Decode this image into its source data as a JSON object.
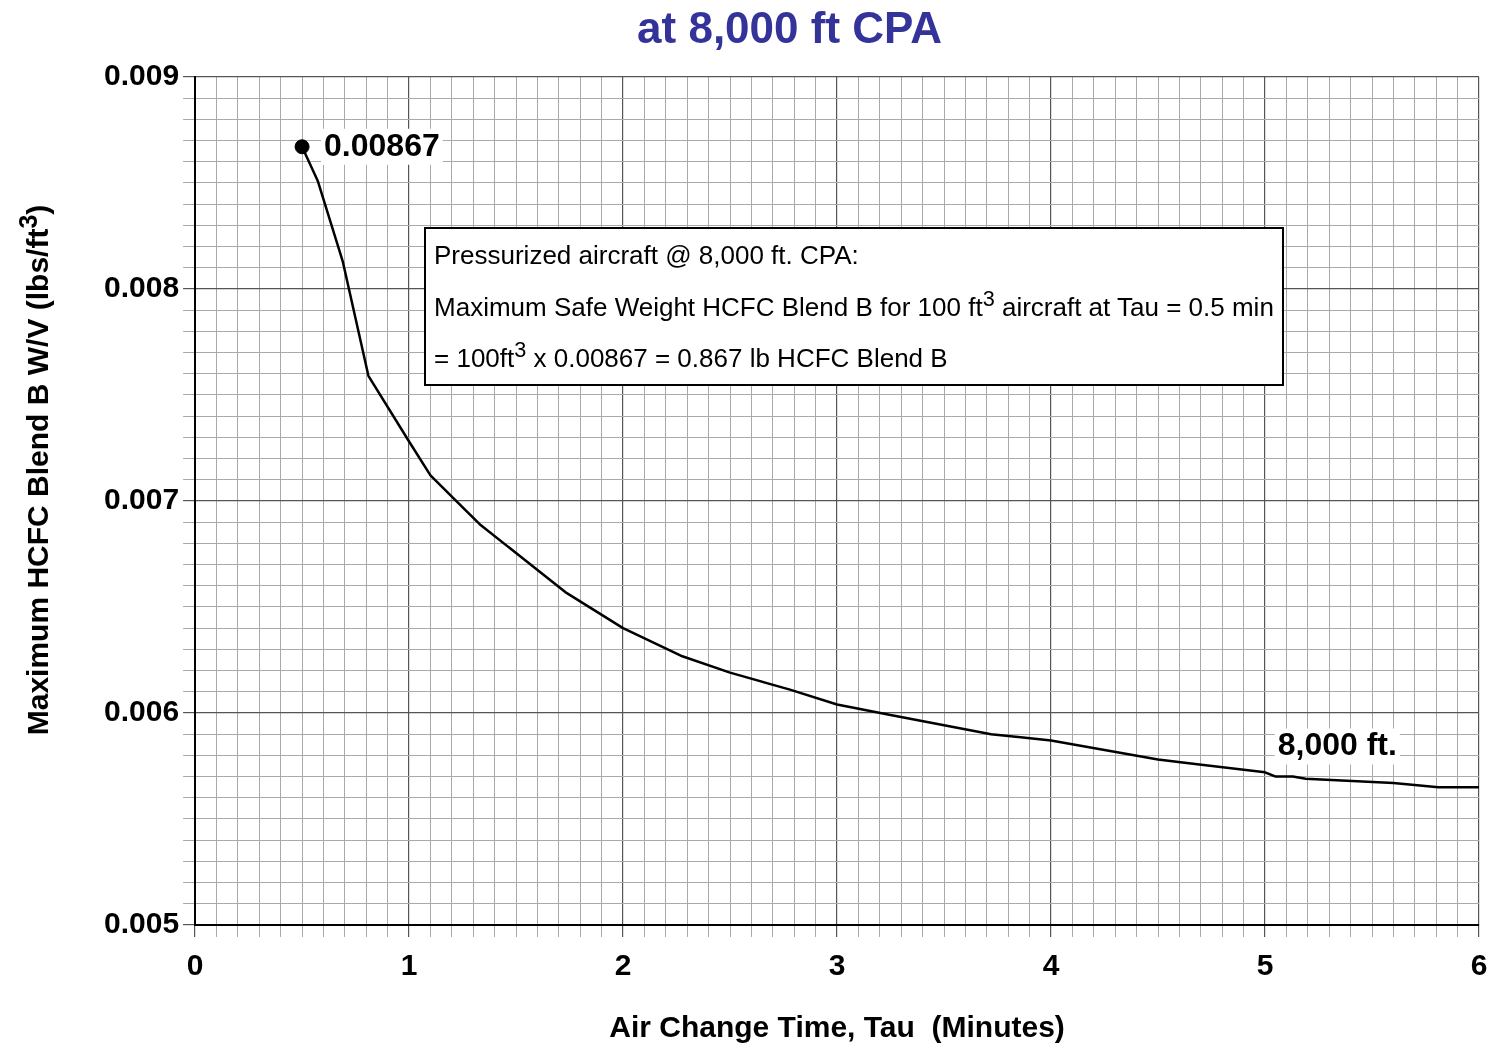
{
  "chart_data": {
    "type": "line",
    "title": "at 8,000 ft CPA",
    "xlabel": "Air Change Time, Tau  (Minutes)",
    "ylabel": "Maximum HCFC Blend B  W/V  (lbs/ft$^{3}$)",
    "series": [
      {
        "color": "#000000",
        "marker": "none",
        "x": [
          0.5,
          0.573,
          0.69,
          0.81,
          1.0,
          1.1,
          1.33,
          1.73,
          2.0,
          2.27,
          2.5,
          2.78,
          3.0,
          3.25,
          3.72,
          4.0,
          4.5,
          5.0,
          5.05,
          5.13,
          5.19,
          5.6,
          5.81,
          6.0
        ],
        "values": [
          0.00867,
          0.00851,
          0.00813,
          0.00759,
          0.00728,
          0.00712,
          0.00689,
          0.00657,
          0.0064,
          0.00627,
          0.00619,
          0.00611,
          0.00604,
          0.00599,
          0.0059,
          0.00587,
          0.00578,
          0.00572,
          0.0057,
          0.0057,
          0.00569,
          0.00567,
          0.00565,
          0.00565
        ]
      },
      {
        "type": "scatter",
        "color": "#000000",
        "marker": "circle",
        "x": [
          0.5
        ],
        "values": [
          0.00867
        ]
      }
    ],
    "xlim": [
      0,
      6
    ],
    "xticks": [
      0,
      1,
      2,
      3,
      4,
      5,
      6
    ],
    "ylim": [
      0.005,
      0.009
    ],
    "yticks": [
      0.005,
      0.006,
      0.007,
      0.008,
      0.009
    ],
    "grid": true,
    "annotations": [
      {
        "text": "0.00867",
        "x": 0.5,
        "y": 0.00867
      },
      {
        "text": "8,000 ft.",
        "x": 5.05,
        "y": 0.0057
      },
      "Pressurized aircraft @ 8,000 ft. CPA:",
      "Maximum Safe Weight HCFC Blend B for 100 ft$^{3}$ aircraft  at Tau = 0.5 min",
      "= 100ft$^{3}$  x 0.00867 =  0.867 lb HCFC Blend B"
    ]
  }
}
